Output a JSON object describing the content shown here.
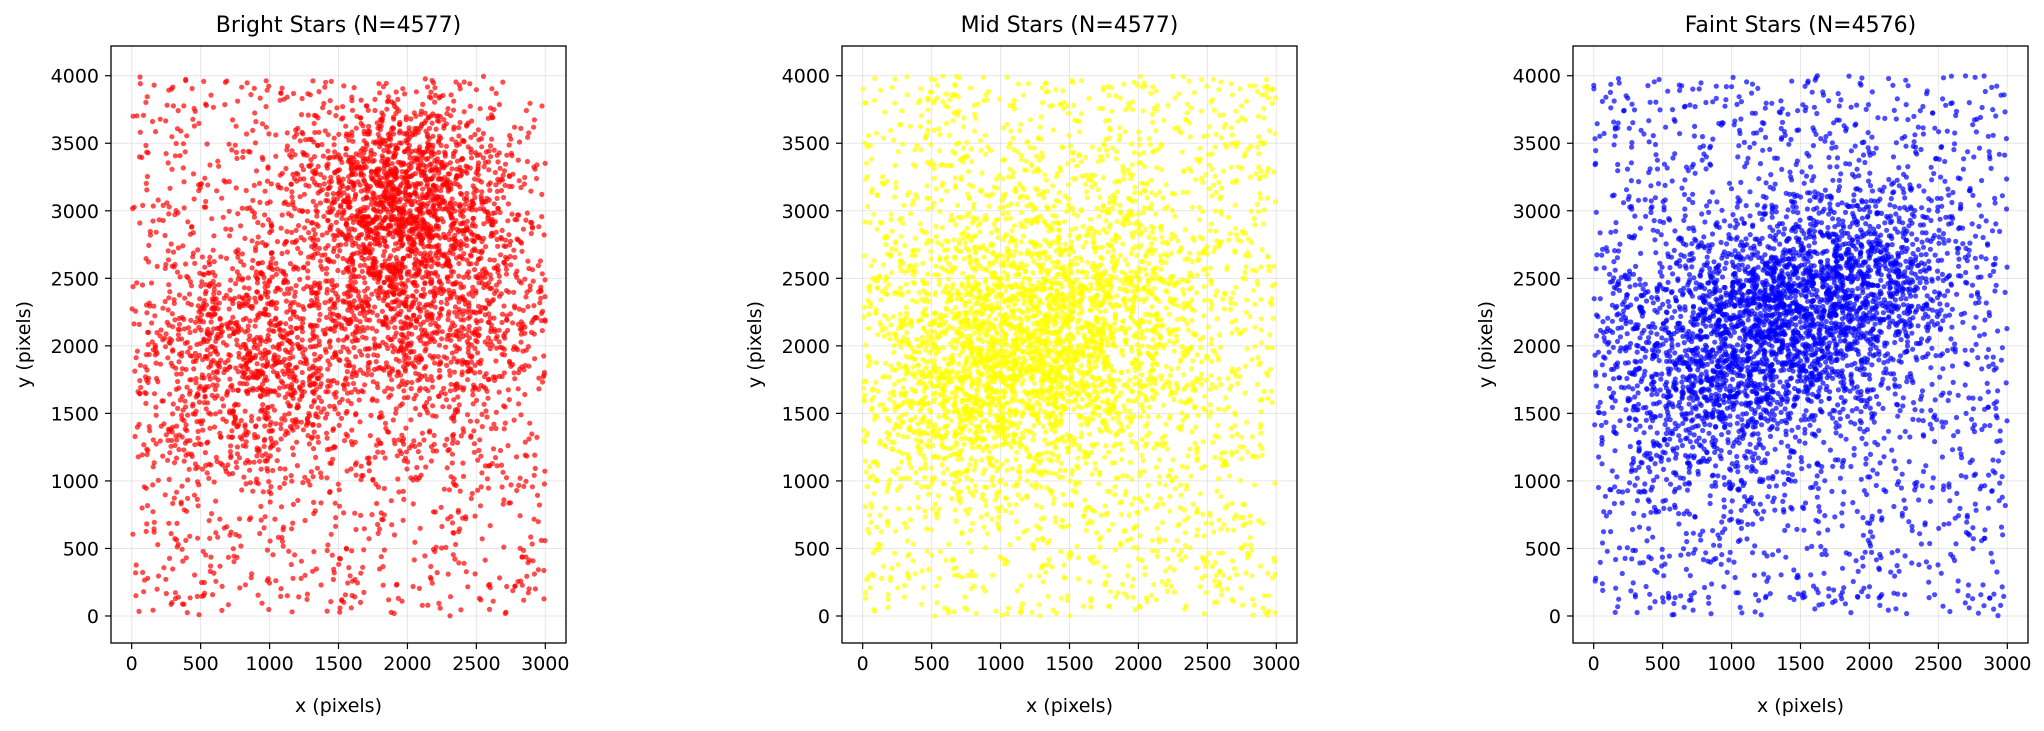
{
  "figure": {
    "background": "#ffffff"
  },
  "chart_data": [
    {
      "type": "scatter",
      "title": "Bright Stars (N=4577)",
      "xlabel": "x (pixels)",
      "ylabel": "y (pixels)",
      "color": "#ff0000",
      "n_points": 4577,
      "xlim": [
        -150,
        3150
      ],
      "ylim": [
        -200,
        4220
      ],
      "xticks": [
        0,
        500,
        1000,
        1500,
        2000,
        2500,
        3000
      ],
      "yticks": [
        0,
        500,
        1000,
        1500,
        2000,
        2500,
        3000,
        3500,
        4000
      ],
      "grid": true,
      "point_range": {
        "x": [
          0,
          3000
        ],
        "y": [
          0,
          4000
        ]
      },
      "density_peaks": [
        {
          "x": 1900,
          "y": 3100,
          "weight": 0.25,
          "spread": 350
        },
        {
          "x": 2150,
          "y": 2350,
          "weight": 0.25,
          "spread": 500
        },
        {
          "x": 900,
          "y": 1900,
          "weight": 0.2,
          "spread": 450
        }
      ]
    },
    {
      "type": "scatter",
      "title": "Mid Stars (N=4577)",
      "xlabel": "x (pixels)",
      "ylabel": "y (pixels)",
      "color": "#ffff00",
      "n_points": 4577,
      "xlim": [
        -150,
        3150
      ],
      "ylim": [
        -200,
        4220
      ],
      "xticks": [
        0,
        500,
        1000,
        1500,
        2000,
        2500,
        3000
      ],
      "yticks": [
        0,
        500,
        1000,
        1500,
        2000,
        2500,
        3000,
        3500,
        4000
      ],
      "grid": true,
      "point_range": {
        "x": [
          0,
          3000
        ],
        "y": [
          0,
          4000
        ]
      },
      "density_peaks": [
        {
          "x": 1500,
          "y": 2200,
          "weight": 0.35,
          "spread": 550
        },
        {
          "x": 850,
          "y": 1800,
          "weight": 0.25,
          "spread": 450
        }
      ]
    },
    {
      "type": "scatter",
      "title": "Faint Stars (N=4576)",
      "xlabel": "x (pixels)",
      "ylabel": "y (pixels)",
      "color": "#0000ff",
      "n_points": 4576,
      "xlim": [
        -150,
        3150
      ],
      "ylim": [
        -200,
        4220
      ],
      "xticks": [
        0,
        500,
        1000,
        1500,
        2000,
        2500,
        3000
      ],
      "yticks": [
        0,
        500,
        1000,
        1500,
        2000,
        2500,
        3000,
        3500,
        4000
      ],
      "grid": true,
      "point_range": {
        "x": [
          0,
          3000
        ],
        "y": [
          0,
          4000
        ]
      },
      "density_peaks": [
        {
          "x": 1400,
          "y": 2200,
          "weight": 0.25,
          "spread": 400
        },
        {
          "x": 800,
          "y": 1800,
          "weight": 0.25,
          "spread": 450
        },
        {
          "x": 2000,
          "y": 2500,
          "weight": 0.15,
          "spread": 350
        }
      ]
    }
  ]
}
